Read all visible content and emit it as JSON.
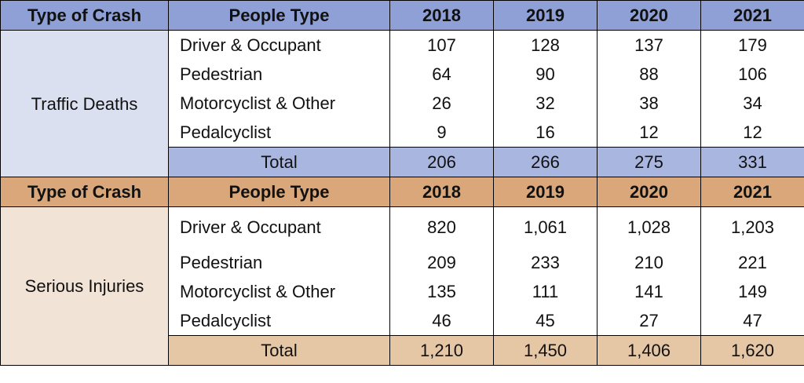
{
  "header": {
    "type_of_crash": "Type of Crash",
    "people_type": "People Type",
    "years": [
      "2018",
      "2019",
      "2020",
      "2021"
    ]
  },
  "sections": [
    {
      "category": "Traffic Deaths",
      "rows": [
        {
          "label": "Driver & Occupant",
          "values": [
            "107",
            "128",
            "137",
            "179"
          ]
        },
        {
          "label": "Pedestrian",
          "values": [
            "64",
            "90",
            "88",
            "106"
          ]
        },
        {
          "label": "Motorcyclist & Other",
          "values": [
            "26",
            "32",
            "38",
            "34"
          ]
        },
        {
          "label": "Pedalcyclist",
          "values": [
            "9",
            "16",
            "12",
            "12"
          ]
        }
      ],
      "total": {
        "label": "Total",
        "values": [
          "206",
          "266",
          "275",
          "331"
        ]
      }
    },
    {
      "category": "Serious Injuries",
      "rows": [
        {
          "label": "Driver & Occupant",
          "values": [
            "820",
            "1,061",
            "1,028",
            "1,203"
          ]
        },
        {
          "label": "Pedestrian",
          "values": [
            "209",
            "233",
            "210",
            "221"
          ]
        },
        {
          "label": "Motorcyclist & Other",
          "values": [
            "135",
            "111",
            "141",
            "149"
          ]
        },
        {
          "label": "Pedalcyclist",
          "values": [
            "46",
            "45",
            "27",
            "47"
          ]
        }
      ],
      "total": {
        "label": "Total",
        "values": [
          "1,210",
          "1,450",
          "1,406",
          "1,620"
        ]
      }
    }
  ],
  "colors": {
    "deaths_header": "#8fa0d6",
    "deaths_category": "#dbe0f0",
    "deaths_total": "#a9b6e0",
    "injuries_header": "#d9a77a",
    "injuries_category": "#f1e3d6",
    "injuries_total": "#e5c6a5"
  }
}
